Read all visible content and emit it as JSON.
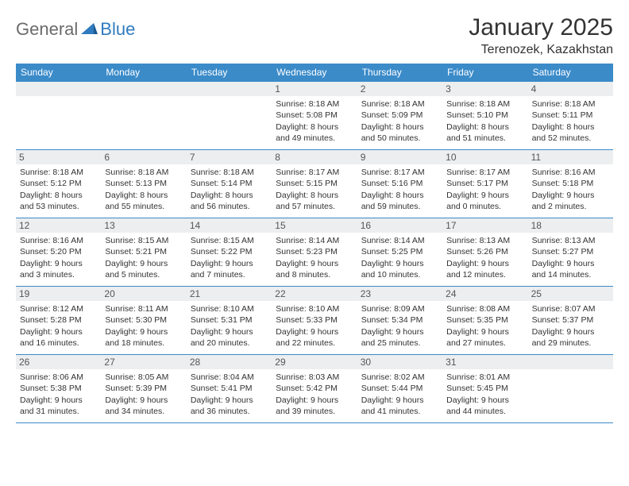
{
  "brand": {
    "general": "General",
    "blue": "Blue"
  },
  "title": "January 2025",
  "location": "Terenozek, Kazakhstan",
  "colors": {
    "header_bg": "#3b8bc9",
    "header_text": "#ffffff",
    "daynum_bg": "#eceef0",
    "rule": "#3b8bc9",
    "logo_gray": "#6b6b6b",
    "logo_blue": "#2f7bbf"
  },
  "weekdays": [
    "Sunday",
    "Monday",
    "Tuesday",
    "Wednesday",
    "Thursday",
    "Friday",
    "Saturday"
  ],
  "weeks": [
    [
      null,
      null,
      null,
      {
        "n": "1",
        "sr": "Sunrise: 8:18 AM",
        "ss": "Sunset: 5:08 PM",
        "d1": "Daylight: 8 hours",
        "d2": "and 49 minutes."
      },
      {
        "n": "2",
        "sr": "Sunrise: 8:18 AM",
        "ss": "Sunset: 5:09 PM",
        "d1": "Daylight: 8 hours",
        "d2": "and 50 minutes."
      },
      {
        "n": "3",
        "sr": "Sunrise: 8:18 AM",
        "ss": "Sunset: 5:10 PM",
        "d1": "Daylight: 8 hours",
        "d2": "and 51 minutes."
      },
      {
        "n": "4",
        "sr": "Sunrise: 8:18 AM",
        "ss": "Sunset: 5:11 PM",
        "d1": "Daylight: 8 hours",
        "d2": "and 52 minutes."
      }
    ],
    [
      {
        "n": "5",
        "sr": "Sunrise: 8:18 AM",
        "ss": "Sunset: 5:12 PM",
        "d1": "Daylight: 8 hours",
        "d2": "and 53 minutes."
      },
      {
        "n": "6",
        "sr": "Sunrise: 8:18 AM",
        "ss": "Sunset: 5:13 PM",
        "d1": "Daylight: 8 hours",
        "d2": "and 55 minutes."
      },
      {
        "n": "7",
        "sr": "Sunrise: 8:18 AM",
        "ss": "Sunset: 5:14 PM",
        "d1": "Daylight: 8 hours",
        "d2": "and 56 minutes."
      },
      {
        "n": "8",
        "sr": "Sunrise: 8:17 AM",
        "ss": "Sunset: 5:15 PM",
        "d1": "Daylight: 8 hours",
        "d2": "and 57 minutes."
      },
      {
        "n": "9",
        "sr": "Sunrise: 8:17 AM",
        "ss": "Sunset: 5:16 PM",
        "d1": "Daylight: 8 hours",
        "d2": "and 59 minutes."
      },
      {
        "n": "10",
        "sr": "Sunrise: 8:17 AM",
        "ss": "Sunset: 5:17 PM",
        "d1": "Daylight: 9 hours",
        "d2": "and 0 minutes."
      },
      {
        "n": "11",
        "sr": "Sunrise: 8:16 AM",
        "ss": "Sunset: 5:18 PM",
        "d1": "Daylight: 9 hours",
        "d2": "and 2 minutes."
      }
    ],
    [
      {
        "n": "12",
        "sr": "Sunrise: 8:16 AM",
        "ss": "Sunset: 5:20 PM",
        "d1": "Daylight: 9 hours",
        "d2": "and 3 minutes."
      },
      {
        "n": "13",
        "sr": "Sunrise: 8:15 AM",
        "ss": "Sunset: 5:21 PM",
        "d1": "Daylight: 9 hours",
        "d2": "and 5 minutes."
      },
      {
        "n": "14",
        "sr": "Sunrise: 8:15 AM",
        "ss": "Sunset: 5:22 PM",
        "d1": "Daylight: 9 hours",
        "d2": "and 7 minutes."
      },
      {
        "n": "15",
        "sr": "Sunrise: 8:14 AM",
        "ss": "Sunset: 5:23 PM",
        "d1": "Daylight: 9 hours",
        "d2": "and 8 minutes."
      },
      {
        "n": "16",
        "sr": "Sunrise: 8:14 AM",
        "ss": "Sunset: 5:25 PM",
        "d1": "Daylight: 9 hours",
        "d2": "and 10 minutes."
      },
      {
        "n": "17",
        "sr": "Sunrise: 8:13 AM",
        "ss": "Sunset: 5:26 PM",
        "d1": "Daylight: 9 hours",
        "d2": "and 12 minutes."
      },
      {
        "n": "18",
        "sr": "Sunrise: 8:13 AM",
        "ss": "Sunset: 5:27 PM",
        "d1": "Daylight: 9 hours",
        "d2": "and 14 minutes."
      }
    ],
    [
      {
        "n": "19",
        "sr": "Sunrise: 8:12 AM",
        "ss": "Sunset: 5:28 PM",
        "d1": "Daylight: 9 hours",
        "d2": "and 16 minutes."
      },
      {
        "n": "20",
        "sr": "Sunrise: 8:11 AM",
        "ss": "Sunset: 5:30 PM",
        "d1": "Daylight: 9 hours",
        "d2": "and 18 minutes."
      },
      {
        "n": "21",
        "sr": "Sunrise: 8:10 AM",
        "ss": "Sunset: 5:31 PM",
        "d1": "Daylight: 9 hours",
        "d2": "and 20 minutes."
      },
      {
        "n": "22",
        "sr": "Sunrise: 8:10 AM",
        "ss": "Sunset: 5:33 PM",
        "d1": "Daylight: 9 hours",
        "d2": "and 22 minutes."
      },
      {
        "n": "23",
        "sr": "Sunrise: 8:09 AM",
        "ss": "Sunset: 5:34 PM",
        "d1": "Daylight: 9 hours",
        "d2": "and 25 minutes."
      },
      {
        "n": "24",
        "sr": "Sunrise: 8:08 AM",
        "ss": "Sunset: 5:35 PM",
        "d1": "Daylight: 9 hours",
        "d2": "and 27 minutes."
      },
      {
        "n": "25",
        "sr": "Sunrise: 8:07 AM",
        "ss": "Sunset: 5:37 PM",
        "d1": "Daylight: 9 hours",
        "d2": "and 29 minutes."
      }
    ],
    [
      {
        "n": "26",
        "sr": "Sunrise: 8:06 AM",
        "ss": "Sunset: 5:38 PM",
        "d1": "Daylight: 9 hours",
        "d2": "and 31 minutes."
      },
      {
        "n": "27",
        "sr": "Sunrise: 8:05 AM",
        "ss": "Sunset: 5:39 PM",
        "d1": "Daylight: 9 hours",
        "d2": "and 34 minutes."
      },
      {
        "n": "28",
        "sr": "Sunrise: 8:04 AM",
        "ss": "Sunset: 5:41 PM",
        "d1": "Daylight: 9 hours",
        "d2": "and 36 minutes."
      },
      {
        "n": "29",
        "sr": "Sunrise: 8:03 AM",
        "ss": "Sunset: 5:42 PM",
        "d1": "Daylight: 9 hours",
        "d2": "and 39 minutes."
      },
      {
        "n": "30",
        "sr": "Sunrise: 8:02 AM",
        "ss": "Sunset: 5:44 PM",
        "d1": "Daylight: 9 hours",
        "d2": "and 41 minutes."
      },
      {
        "n": "31",
        "sr": "Sunrise: 8:01 AM",
        "ss": "Sunset: 5:45 PM",
        "d1": "Daylight: 9 hours",
        "d2": "and 44 minutes."
      },
      null
    ]
  ]
}
